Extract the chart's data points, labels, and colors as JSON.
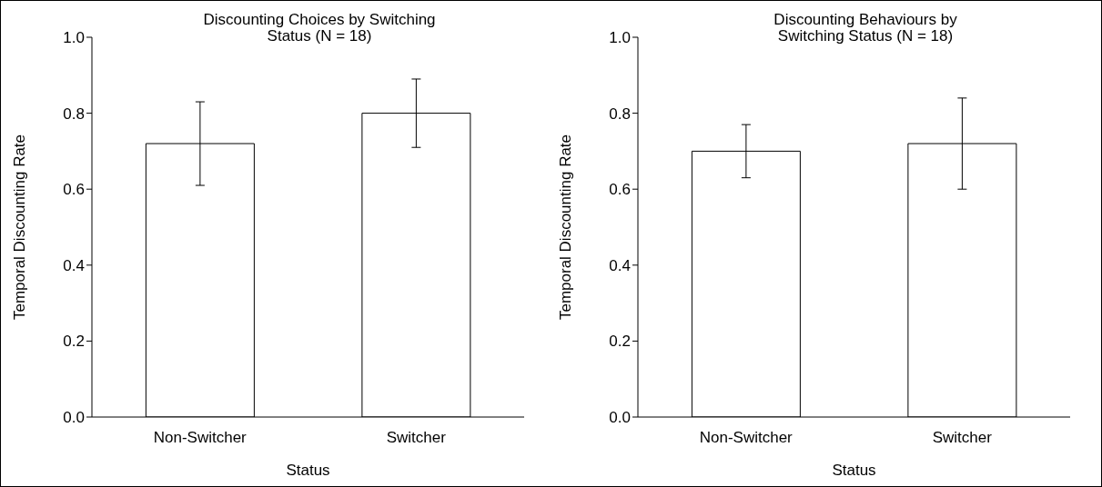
{
  "chart_data": [
    {
      "type": "bar",
      "title": "Discounting Choices by Switching Status (N = 18)",
      "xlabel": "Status",
      "ylabel": "Temporal Discounting Rate",
      "categories": [
        "Non-Switcher",
        "Switcher"
      ],
      "values": [
        0.72,
        0.8
      ],
      "errors": [
        0.11,
        0.09
      ],
      "color": "#ffffff",
      "ylim": [
        0,
        1
      ],
      "yticks": [
        {
          "value": 0,
          "label": "0.0"
        },
        {
          "value": 0.2,
          "label": "0.2"
        },
        {
          "value": 0.4,
          "label": "0.4"
        },
        {
          "value": 0.6,
          "label": "0.6"
        },
        {
          "value": 0.8,
          "label": "0.8"
        },
        {
          "value": 1,
          "label": "1.0"
        }
      ],
      "grid": false,
      "legend": false
    },
    {
      "type": "bar",
      "title": "Discounting Behaviours by Switching Status (N = 18)",
      "xlabel": "Status",
      "ylabel": "Temporal Discounting Rate",
      "categories": [
        "Non-Switcher",
        "Switcher"
      ],
      "values": [
        0.7,
        0.72
      ],
      "errors": [
        0.07,
        0.12
      ],
      "color": "#ffffff",
      "ylim": [
        0,
        1
      ],
      "yticks": [
        {
          "value": 0,
          "label": "0.0"
        },
        {
          "value": 0.2,
          "label": "0.2"
        },
        {
          "value": 0.4,
          "label": "0.4"
        },
        {
          "value": 0.6,
          "label": "0.6"
        },
        {
          "value": 0.8,
          "label": "0.8"
        },
        {
          "value": 1,
          "label": "1.0"
        }
      ],
      "grid": false,
      "legend": false
    }
  ]
}
